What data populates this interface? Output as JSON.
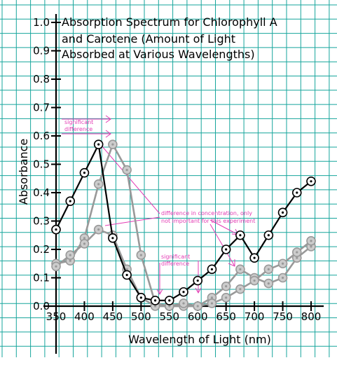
{
  "chart_data": {
    "type": "line",
    "title_lines": [
      "Absorption Spectrum for Chlorophyll A",
      "and Carotene (Amount of Light",
      "Absorbed at Various Wavelengths)"
    ],
    "xlabel": "Wavelength of Light (nm)",
    "ylabel": "Absorbance",
    "xlim": [
      350,
      800
    ],
    "ylim": [
      0,
      1.0
    ],
    "x_ticks": [
      350,
      400,
      450,
      500,
      550,
      600,
      650,
      700,
      750,
      800
    ],
    "x_tick_labels": [
      "350",
      "400",
      "450",
      "500",
      "550",
      "600",
      "650",
      "700",
      "750",
      "800"
    ],
    "y_ticks": [
      0,
      0.1,
      0.2,
      0.3,
      0.4,
      0.5,
      0.6,
      0.7,
      0.8,
      0.9,
      1.0
    ],
    "y_tick_labels": [
      "0.0",
      "0.1",
      "0.2",
      "0.3",
      "0.4",
      "0.5",
      "0.6",
      "0.7",
      "0.8",
      "0.9",
      "1.0"
    ],
    "grid": true,
    "series": [
      {
        "color": "#000000",
        "marker_fill": "#ffffff",
        "points": [
          [
            350,
            0.27
          ],
          [
            375,
            0.37
          ],
          [
            400,
            0.47
          ],
          [
            425,
            0.57
          ],
          [
            450,
            0.24
          ],
          [
            475,
            0.11
          ],
          [
            500,
            0.03
          ],
          [
            525,
            0.02
          ],
          [
            550,
            0.02
          ],
          [
            575,
            0.05
          ],
          [
            600,
            0.09
          ],
          [
            625,
            0.13
          ],
          [
            650,
            0.2
          ],
          [
            675,
            0.25
          ],
          [
            700,
            0.17
          ],
          [
            725,
            0.25
          ],
          [
            750,
            0.33
          ],
          [
            775,
            0.4
          ],
          [
            800,
            0.44
          ]
        ]
      },
      {
        "color": "#999999",
        "marker_fill": "#cccccc",
        "points": [
          [
            350,
            0.15
          ],
          [
            375,
            0.16
          ],
          [
            400,
            0.24
          ],
          [
            425,
            0.43
          ],
          [
            450,
            0.57
          ],
          [
            475,
            0.48
          ],
          [
            500,
            0.18
          ],
          [
            525,
            0.01
          ],
          [
            550,
            0.0
          ],
          [
            575,
            0.0
          ],
          [
            600,
            0.0
          ],
          [
            625,
            0.03
          ],
          [
            650,
            0.07
          ],
          [
            675,
            0.13
          ],
          [
            700,
            0.1
          ],
          [
            725,
            0.08
          ],
          [
            750,
            0.1
          ],
          [
            775,
            0.17
          ],
          [
            800,
            0.21
          ]
        ]
      },
      {
        "color": "#999999",
        "marker_fill": "#cccccc",
        "points": [
          [
            350,
            0.14
          ],
          [
            375,
            0.18
          ],
          [
            400,
            0.22
          ],
          [
            425,
            0.27
          ],
          [
            450,
            0.25
          ],
          [
            475,
            0.13
          ],
          [
            500,
            0.03
          ],
          [
            525,
            0.0
          ],
          [
            550,
            0.0
          ],
          [
            575,
            0.01
          ],
          [
            600,
            0.0
          ],
          [
            625,
            0.01
          ],
          [
            650,
            0.03
          ],
          [
            675,
            0.06
          ],
          [
            700,
            0.09
          ],
          [
            725,
            0.13
          ],
          [
            750,
            0.15
          ],
          [
            775,
            0.19
          ],
          [
            800,
            0.23
          ]
        ]
      }
    ],
    "annotations": [
      {
        "text_lines": [
          "significant",
          "difference"
        ],
        "color": "#e33cb4"
      },
      {
        "text_lines": [
          "difference in concentration, only",
          "not important for this experiment"
        ],
        "color": "#e33cb4"
      },
      {
        "text_lines": [
          "significant",
          "difference"
        ],
        "color": "#e33cb4"
      }
    ]
  }
}
